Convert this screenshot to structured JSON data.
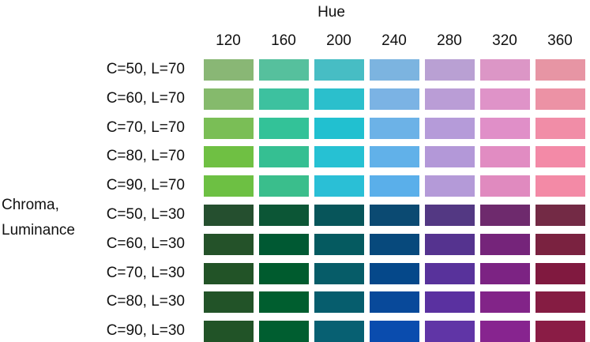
{
  "chart_data": {
    "type": "heatmap",
    "column_title": "Hue",
    "row_title_lines": [
      "Chroma,",
      "Luminance"
    ],
    "columns": [
      "120",
      "160",
      "200",
      "240",
      "280",
      "320",
      "360"
    ],
    "rows": [
      "C=50, L=70",
      "C=60, L=70",
      "C=70, L=70",
      "C=80, L=70",
      "C=90, L=70",
      "C=50, L=30",
      "C=60, L=30",
      "C=70, L=30",
      "C=80, L=30",
      "C=90, L=30"
    ],
    "cell_colors": [
      [
        "#89B775",
        "#56C09D",
        "#47BDC4",
        "#7CB4E0",
        "#B9A0D3",
        "#DC96C6",
        "#E795A4"
      ],
      [
        "#85BA6C",
        "#3DC19F",
        "#2BBFCC",
        "#7BB3E4",
        "#BA9DD6",
        "#DF93C8",
        "#EC92A5"
      ],
      [
        "#7ABE56",
        "#33C298",
        "#21C0D0",
        "#6CB2E7",
        "#B59BD9",
        "#E08FC8",
        "#F18DA7"
      ],
      [
        "#6FC043",
        "#35BF92",
        "#26C1D3",
        "#61B1E9",
        "#B398D8",
        "#E18CC2",
        "#F38AA7"
      ],
      [
        "#6DC043",
        "#3ABE8C",
        "#2ABFD6",
        "#5AAFEA",
        "#B49AD8",
        "#E08ABF",
        "#F38AA6"
      ],
      [
        "#254F2F",
        "#0C5636",
        "#07555A",
        "#0B4A72",
        "#533883",
        "#6E2A6D",
        "#732A45"
      ],
      [
        "#245229",
        "#005933",
        "#055A60",
        "#07497C",
        "#55338F",
        "#75247A",
        "#7A2240"
      ],
      [
        "#225327",
        "#005B2E",
        "#065C68",
        "#05488A",
        "#58329B",
        "#7C2383",
        "#80193F"
      ],
      [
        "#225328",
        "#005E2F",
        "#065D6D",
        "#08499A",
        "#5A31A0",
        "#822488",
        "#851C42"
      ],
      [
        "#215327",
        "#005E30",
        "#076072",
        "#0A4CAE",
        "#6035A6",
        "#87248F",
        "#8A1C45"
      ]
    ]
  }
}
